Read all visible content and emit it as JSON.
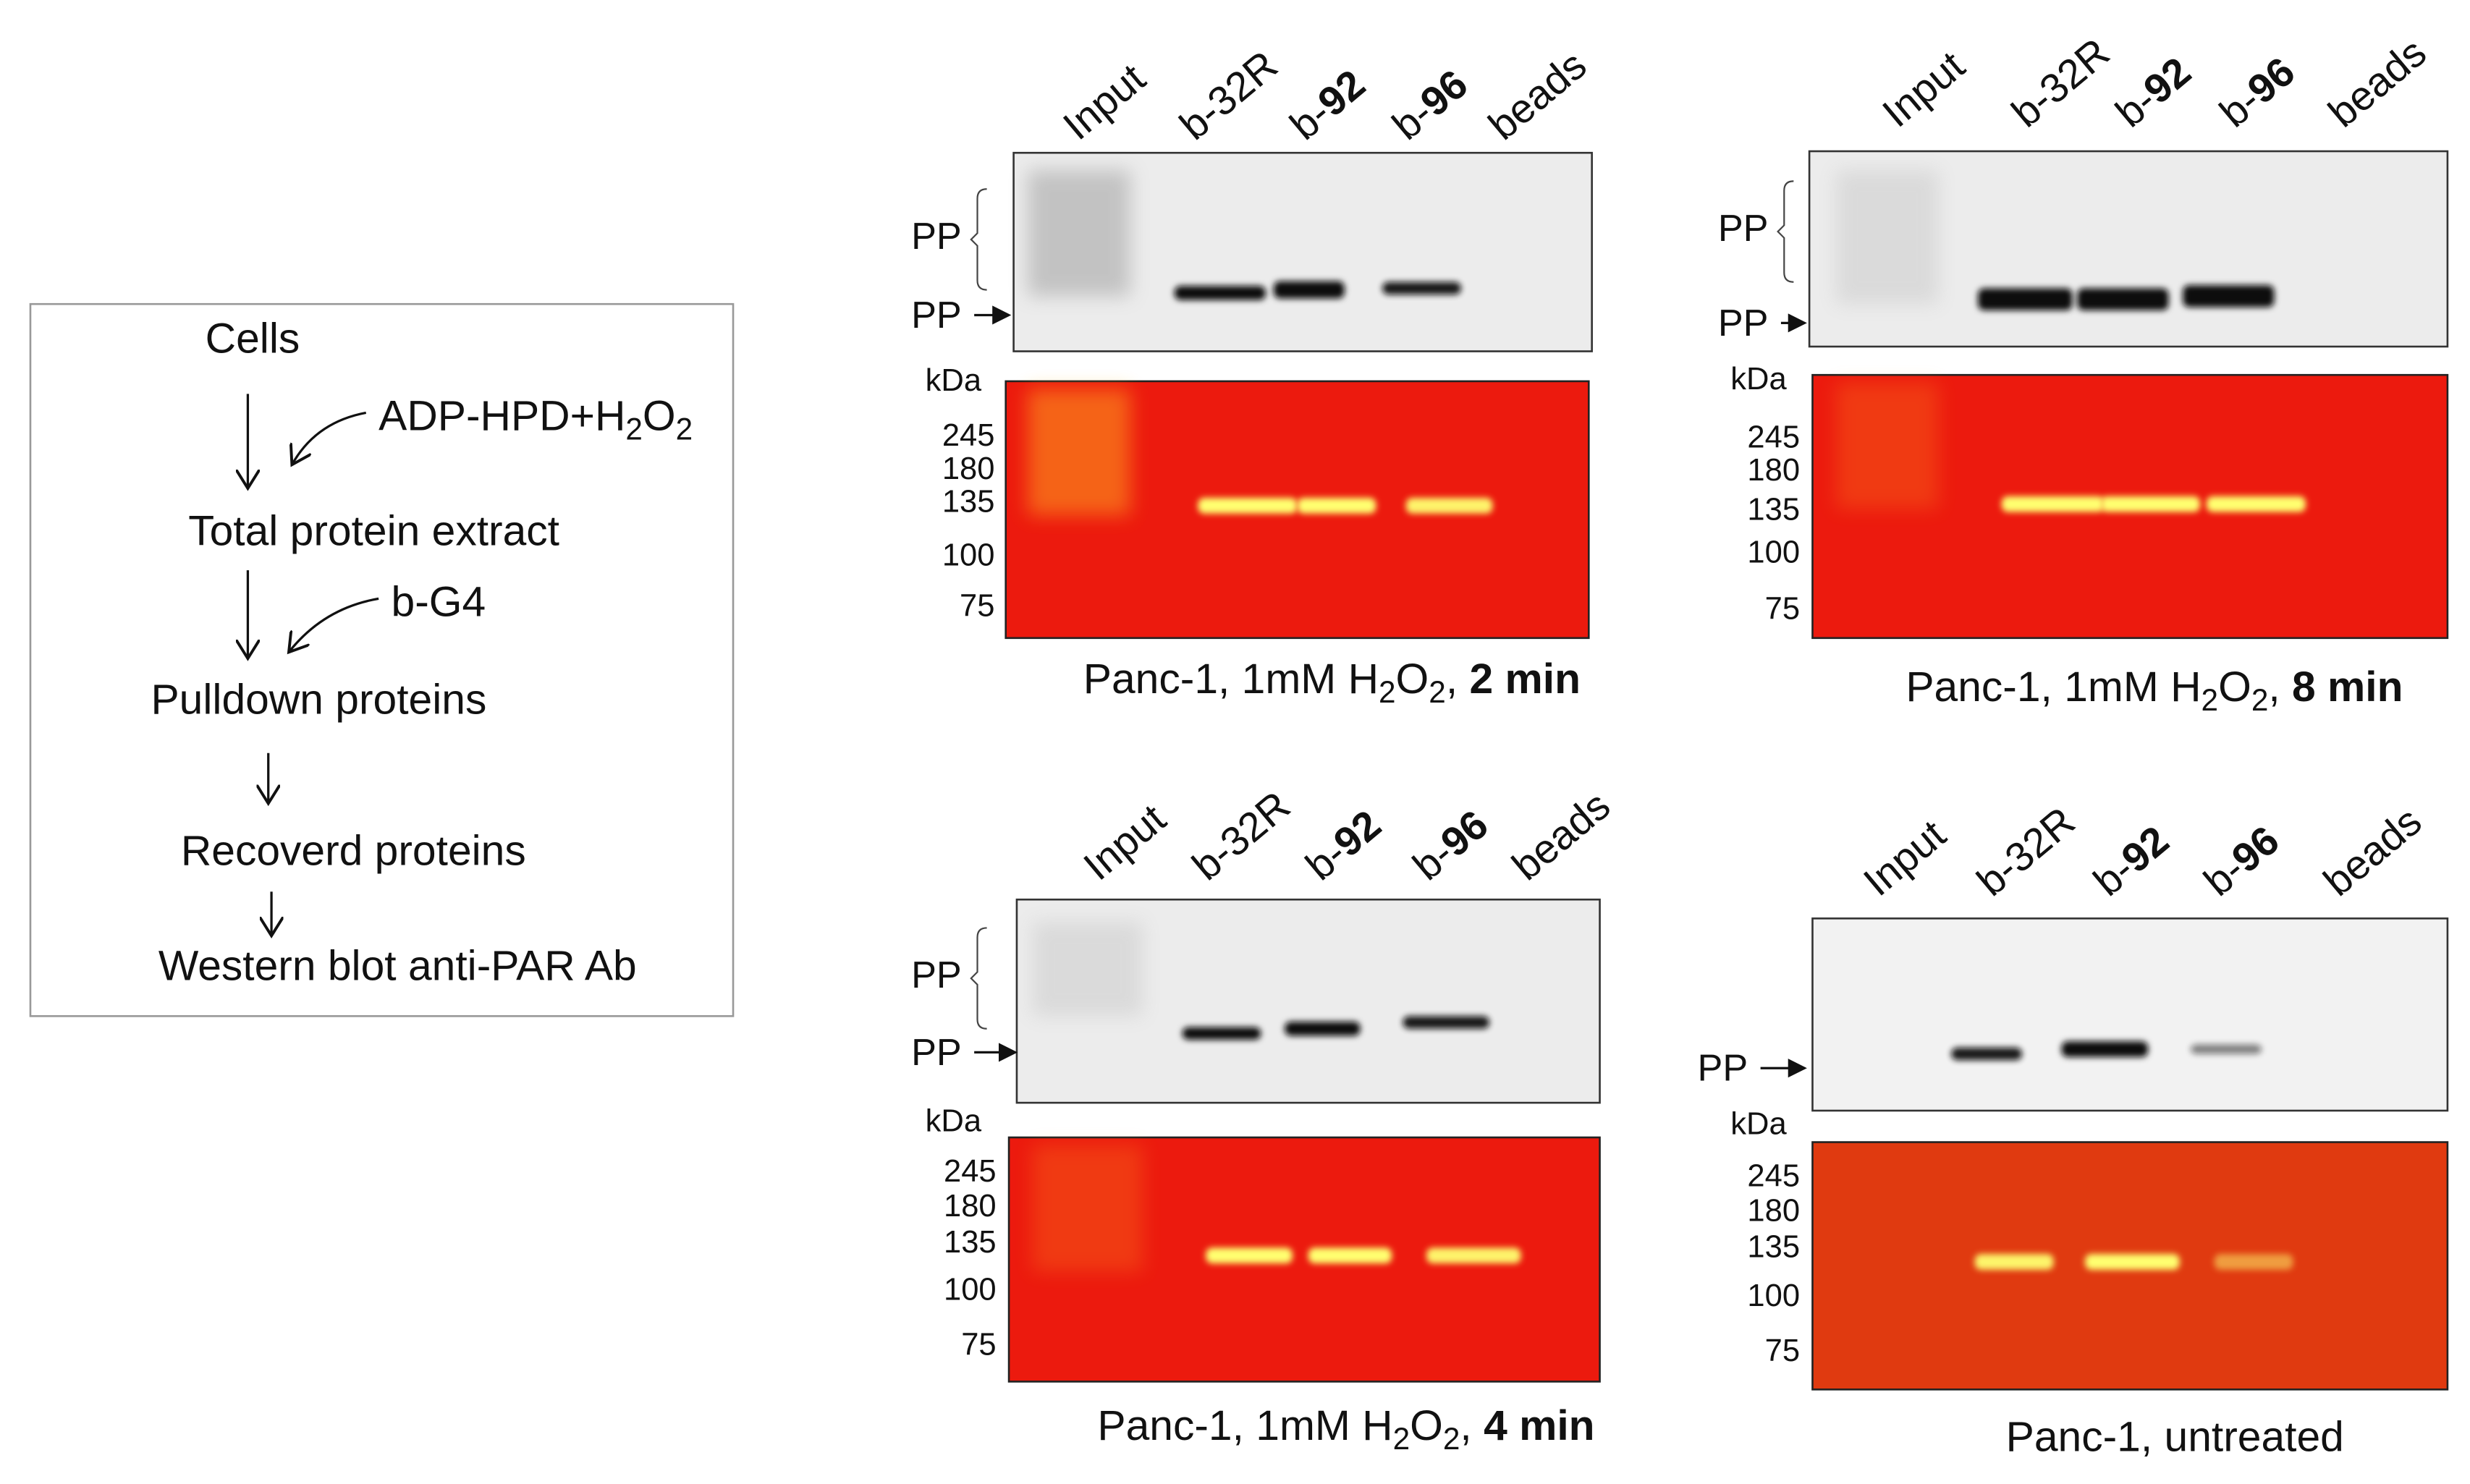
{
  "flowchart": {
    "steps": [
      "Cells",
      "Total protein extract",
      "Pulldown proteins",
      "Recoverd proteins",
      "Western blot anti-PAR Ab"
    ],
    "reagents": [
      [
        {
          "text": "ADP-HPD+H"
        },
        {
          "text": "2",
          "sub": true
        },
        {
          "text": "O"
        },
        {
          "text": "2",
          "sub": true
        }
      ],
      [
        {
          "text": "b-G4"
        }
      ]
    ]
  },
  "panels": [
    {
      "lanes": [
        [
          {
            "text": "Input"
          }
        ],
        [
          {
            "text": "b-32R"
          }
        ],
        [
          {
            "text": "b-"
          },
          {
            "text": "92",
            "bold": true
          }
        ],
        [
          {
            "text": "b-"
          },
          {
            "text": "96",
            "bold": true
          }
        ],
        [
          {
            "text": "beads"
          }
        ]
      ],
      "pp_labels": [
        "PP",
        "PP"
      ],
      "kda_label": "kDa",
      "markers": [
        245,
        180,
        135,
        100,
        75
      ],
      "caption": [
        {
          "text": "Panc-1, 1mM H"
        },
        {
          "text": "2",
          "sub": true
        },
        {
          "text": "O"
        },
        {
          "text": "2",
          "sub": true
        },
        {
          "text": ", "
        },
        {
          "text": "2 min",
          "bold": true
        }
      ]
    },
    {
      "lanes": [
        [
          {
            "text": "Input"
          }
        ],
        [
          {
            "text": "b-32R"
          }
        ],
        [
          {
            "text": "b-"
          },
          {
            "text": "92",
            "bold": true
          }
        ],
        [
          {
            "text": "b-"
          },
          {
            "text": "96",
            "bold": true
          }
        ],
        [
          {
            "text": "beads"
          }
        ]
      ],
      "pp_labels": [
        "PP",
        "PP"
      ],
      "kda_label": "kDa",
      "markers": [
        245,
        180,
        135,
        100,
        75
      ],
      "caption": [
        {
          "text": "Panc-1, 1mM H"
        },
        {
          "text": "2",
          "sub": true
        },
        {
          "text": "O"
        },
        {
          "text": "2",
          "sub": true
        },
        {
          "text": ", "
        },
        {
          "text": "8 min",
          "bold": true
        }
      ]
    },
    {
      "lanes": [
        [
          {
            "text": "Input"
          }
        ],
        [
          {
            "text": "b-32R"
          }
        ],
        [
          {
            "text": "b-"
          },
          {
            "text": "92",
            "bold": true
          }
        ],
        [
          {
            "text": "b-"
          },
          {
            "text": "96",
            "bold": true
          }
        ],
        [
          {
            "text": "beads"
          }
        ]
      ],
      "pp_labels": [
        "PP",
        "PP"
      ],
      "kda_label": "kDa",
      "markers": [
        245,
        180,
        135,
        100,
        75
      ],
      "caption": [
        {
          "text": "Panc-1, 1mM H"
        },
        {
          "text": "2",
          "sub": true
        },
        {
          "text": "O"
        },
        {
          "text": "2",
          "sub": true
        },
        {
          "text": ", "
        },
        {
          "text": "4 min",
          "bold": true
        }
      ]
    },
    {
      "lanes": [
        [
          {
            "text": "Input"
          }
        ],
        [
          {
            "text": "b-32R"
          }
        ],
        [
          {
            "text": "b-"
          },
          {
            "text": "92",
            "bold": true
          }
        ],
        [
          {
            "text": "b-"
          },
          {
            "text": "96",
            "bold": true
          }
        ],
        [
          {
            "text": "beads"
          }
        ]
      ],
      "pp_labels": [
        "PP"
      ],
      "kda_label": "kDa",
      "markers": [
        245,
        180,
        135,
        100,
        75
      ],
      "caption": [
        {
          "text": "Panc-1, untreated"
        }
      ]
    }
  ]
}
